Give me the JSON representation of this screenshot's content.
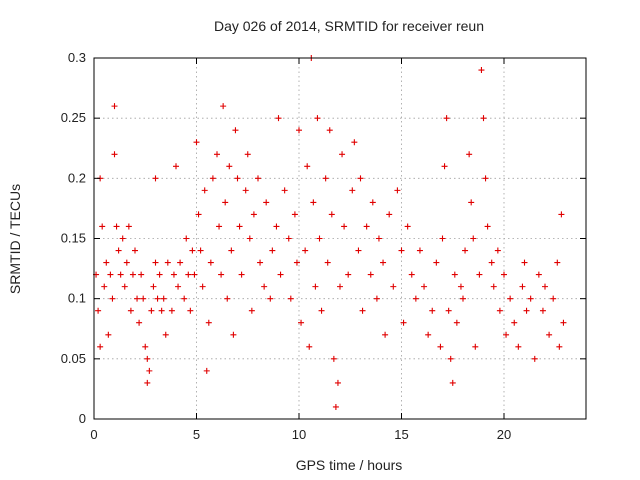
{
  "chart_data": {
    "type": "scatter",
    "title": "Day 026 of 2014, SRMTID for receiver reun",
    "xlabel": "GPS time / hours",
    "ylabel": "SRMTID / TECUs",
    "xlim": [
      0,
      24
    ],
    "ylim": [
      0,
      0.3
    ],
    "xticks": [
      0,
      5,
      10,
      15,
      20
    ],
    "xtick_labels": [
      "0",
      "5",
      "10",
      "15",
      "20"
    ],
    "yticks": [
      0,
      0.05,
      0.1,
      0.15,
      0.2,
      0.25,
      0.3
    ],
    "ytick_labels": [
      "0",
      "0.05",
      "0.1",
      "0.15",
      "0.2",
      "0.25",
      "0.3"
    ],
    "grid": true,
    "marker": "+",
    "color": "#e00000",
    "series": [
      {
        "name": "SRMTID",
        "points": [
          [
            0.1,
            0.12
          ],
          [
            0.2,
            0.09
          ],
          [
            0.3,
            0.2
          ],
          [
            0.3,
            0.06
          ],
          [
            0.4,
            0.16
          ],
          [
            0.5,
            0.11
          ],
          [
            0.6,
            0.13
          ],
          [
            0.7,
            0.07
          ],
          [
            0.8,
            0.12
          ],
          [
            0.9,
            0.1
          ],
          [
            1.0,
            0.26
          ],
          [
            1.0,
            0.22
          ],
          [
            1.1,
            0.16
          ],
          [
            1.2,
            0.14
          ],
          [
            1.3,
            0.12
          ],
          [
            1.4,
            0.15
          ],
          [
            1.5,
            0.11
          ],
          [
            1.6,
            0.13
          ],
          [
            1.7,
            0.16
          ],
          [
            1.8,
            0.09
          ],
          [
            1.9,
            0.12
          ],
          [
            2.0,
            0.14
          ],
          [
            2.1,
            0.1
          ],
          [
            2.2,
            0.08
          ],
          [
            2.3,
            0.12
          ],
          [
            2.4,
            0.1
          ],
          [
            2.5,
            0.06
          ],
          [
            2.6,
            0.03
          ],
          [
            2.6,
            0.05
          ],
          [
            2.7,
            0.04
          ],
          [
            2.8,
            0.09
          ],
          [
            2.9,
            0.11
          ],
          [
            3.0,
            0.2
          ],
          [
            3.0,
            0.13
          ],
          [
            3.1,
            0.1
          ],
          [
            3.2,
            0.12
          ],
          [
            3.3,
            0.09
          ],
          [
            3.4,
            0.1
          ],
          [
            3.5,
            0.07
          ],
          [
            3.6,
            0.13
          ],
          [
            3.8,
            0.09
          ],
          [
            3.9,
            0.12
          ],
          [
            4.0,
            0.21
          ],
          [
            4.1,
            0.11
          ],
          [
            4.2,
            0.13
          ],
          [
            4.4,
            0.1
          ],
          [
            4.5,
            0.15
          ],
          [
            4.6,
            0.12
          ],
          [
            4.7,
            0.09
          ],
          [
            4.8,
            0.14
          ],
          [
            4.9,
            0.12
          ],
          [
            5.0,
            0.23
          ],
          [
            5.1,
            0.17
          ],
          [
            5.2,
            0.14
          ],
          [
            5.3,
            0.11
          ],
          [
            5.4,
            0.19
          ],
          [
            5.5,
            0.04
          ],
          [
            5.6,
            0.08
          ],
          [
            5.7,
            0.13
          ],
          [
            5.8,
            0.2
          ],
          [
            6.0,
            0.22
          ],
          [
            6.1,
            0.16
          ],
          [
            6.2,
            0.12
          ],
          [
            6.3,
            0.26
          ],
          [
            6.4,
            0.18
          ],
          [
            6.5,
            0.1
          ],
          [
            6.6,
            0.21
          ],
          [
            6.7,
            0.14
          ],
          [
            6.8,
            0.07
          ],
          [
            6.9,
            0.24
          ],
          [
            7.0,
            0.2
          ],
          [
            7.1,
            0.16
          ],
          [
            7.2,
            0.12
          ],
          [
            7.4,
            0.19
          ],
          [
            7.5,
            0.22
          ],
          [
            7.6,
            0.15
          ],
          [
            7.7,
            0.09
          ],
          [
            7.8,
            0.17
          ],
          [
            8.0,
            0.2
          ],
          [
            8.1,
            0.13
          ],
          [
            8.3,
            0.11
          ],
          [
            8.4,
            0.18
          ],
          [
            8.6,
            0.1
          ],
          [
            8.7,
            0.14
          ],
          [
            8.9,
            0.16
          ],
          [
            9.0,
            0.25
          ],
          [
            9.1,
            0.12
          ],
          [
            9.3,
            0.19
          ],
          [
            9.5,
            0.15
          ],
          [
            9.6,
            0.1
          ],
          [
            9.8,
            0.17
          ],
          [
            9.9,
            0.13
          ],
          [
            10.0,
            0.24
          ],
          [
            10.1,
            0.08
          ],
          [
            10.3,
            0.14
          ],
          [
            10.4,
            0.21
          ],
          [
            10.5,
            0.06
          ],
          [
            10.6,
            0.3
          ],
          [
            10.7,
            0.18
          ],
          [
            10.8,
            0.11
          ],
          [
            10.9,
            0.25
          ],
          [
            11.0,
            0.15
          ],
          [
            11.1,
            0.09
          ],
          [
            11.3,
            0.2
          ],
          [
            11.4,
            0.13
          ],
          [
            11.5,
            0.24
          ],
          [
            11.6,
            0.17
          ],
          [
            11.7,
            0.05
          ],
          [
            11.8,
            0.01
          ],
          [
            11.9,
            0.03
          ],
          [
            12.0,
            0.11
          ],
          [
            12.1,
            0.22
          ],
          [
            12.2,
            0.16
          ],
          [
            12.4,
            0.12
          ],
          [
            12.6,
            0.19
          ],
          [
            12.7,
            0.23
          ],
          [
            12.9,
            0.14
          ],
          [
            13.0,
            0.2
          ],
          [
            13.1,
            0.09
          ],
          [
            13.3,
            0.16
          ],
          [
            13.5,
            0.12
          ],
          [
            13.6,
            0.18
          ],
          [
            13.8,
            0.1
          ],
          [
            13.9,
            0.15
          ],
          [
            14.1,
            0.13
          ],
          [
            14.2,
            0.07
          ],
          [
            14.4,
            0.17
          ],
          [
            14.6,
            0.11
          ],
          [
            14.8,
            0.19
          ],
          [
            15.0,
            0.14
          ],
          [
            15.1,
            0.08
          ],
          [
            15.3,
            0.16
          ],
          [
            15.5,
            0.12
          ],
          [
            15.7,
            0.1
          ],
          [
            15.9,
            0.14
          ],
          [
            16.1,
            0.11
          ],
          [
            16.3,
            0.07
          ],
          [
            16.5,
            0.09
          ],
          [
            16.7,
            0.13
          ],
          [
            16.9,
            0.06
          ],
          [
            17.0,
            0.15
          ],
          [
            17.1,
            0.21
          ],
          [
            17.2,
            0.25
          ],
          [
            17.3,
            0.09
          ],
          [
            17.4,
            0.05
          ],
          [
            17.5,
            0.03
          ],
          [
            17.6,
            0.12
          ],
          [
            17.7,
            0.08
          ],
          [
            17.9,
            0.11
          ],
          [
            18.0,
            0.1
          ],
          [
            18.1,
            0.14
          ],
          [
            18.3,
            0.22
          ],
          [
            18.4,
            0.18
          ],
          [
            18.5,
            0.15
          ],
          [
            18.6,
            0.06
          ],
          [
            18.8,
            0.12
          ],
          [
            18.9,
            0.29
          ],
          [
            19.0,
            0.25
          ],
          [
            19.1,
            0.2
          ],
          [
            19.2,
            0.16
          ],
          [
            19.4,
            0.13
          ],
          [
            19.5,
            0.11
          ],
          [
            19.7,
            0.14
          ],
          [
            19.8,
            0.09
          ],
          [
            20.0,
            0.12
          ],
          [
            20.1,
            0.07
          ],
          [
            20.3,
            0.1
          ],
          [
            20.5,
            0.08
          ],
          [
            20.7,
            0.06
          ],
          [
            20.9,
            0.11
          ],
          [
            21.0,
            0.13
          ],
          [
            21.1,
            0.09
          ],
          [
            21.3,
            0.1
          ],
          [
            21.5,
            0.05
          ],
          [
            21.7,
            0.12
          ],
          [
            21.9,
            0.09
          ],
          [
            22.0,
            0.11
          ],
          [
            22.2,
            0.07
          ],
          [
            22.4,
            0.1
          ],
          [
            22.6,
            0.13
          ],
          [
            22.7,
            0.06
          ],
          [
            22.8,
            0.17
          ],
          [
            22.9,
            0.08
          ]
        ]
      }
    ]
  }
}
